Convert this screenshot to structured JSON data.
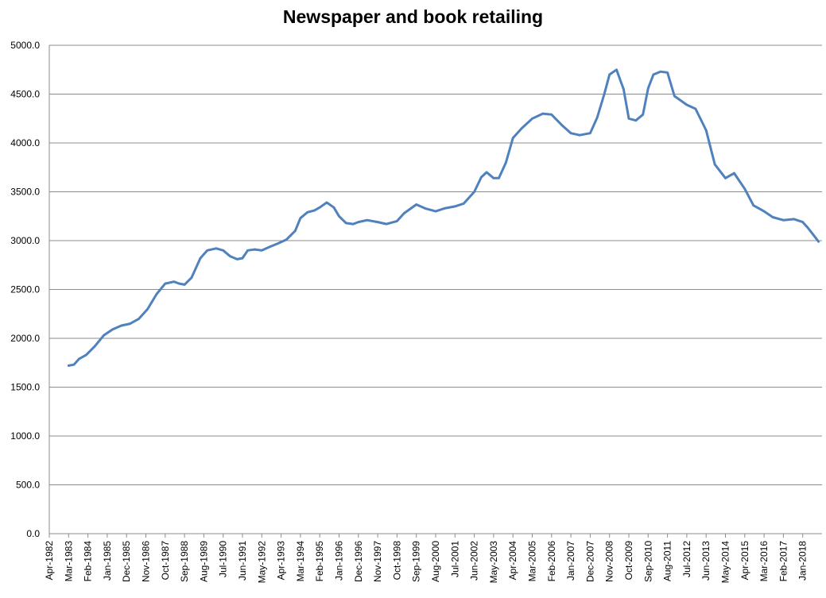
{
  "chart_data": {
    "type": "line",
    "title": "Newspaper and book retailing",
    "xlabel": "",
    "ylabel": "",
    "ylim": [
      0,
      5000
    ],
    "y_ticks": [
      "0.0",
      "500.0",
      "1000.0",
      "1500.0",
      "2000.0",
      "2500.0",
      "3000.0",
      "3500.0",
      "4000.0",
      "4500.0",
      "5000.0"
    ],
    "grid": true,
    "legend": "none",
    "x_ticks": [
      "Apr-1982",
      "Mar-1983",
      "Feb-1984",
      "Jan-1985",
      "Dec-1985",
      "Nov-1986",
      "Oct-1987",
      "Sep-1988",
      "Aug-1989",
      "Jul-1990",
      "Jun-1991",
      "May-1992",
      "Apr-1993",
      "Mar-1994",
      "Feb-1995",
      "Jan-1996",
      "Dec-1996",
      "Nov-1997",
      "Oct-1998",
      "Sep-1999",
      "Aug-2000",
      "Jul-2001",
      "Jun-2002",
      "May-2003",
      "Apr-2004",
      "Mar-2005",
      "Feb-2006",
      "Jan-2007",
      "Dec-2007",
      "Nov-2008",
      "Oct-2009",
      "Sep-2010",
      "Aug-2011",
      "Jul-2012",
      "Jun-2013",
      "May-2014",
      "Apr-2015",
      "Mar-2016",
      "Feb-2017",
      "Jan-2018"
    ],
    "series": [
      {
        "color": "#4F81BD",
        "x": [
          "Mar-1983",
          "Jun-1983",
          "Sep-1983",
          "Jan-1984",
          "Jun-1984",
          "Nov-1984",
          "Apr-1985",
          "Sep-1985",
          "Feb-1986",
          "Jul-1986",
          "Dec-1986",
          "May-1987",
          "Oct-1987",
          "Mar-1988",
          "Jun-1988",
          "Sep-1988",
          "Jan-1989",
          "Jun-1989",
          "Oct-1989",
          "Mar-1990",
          "Jul-1990",
          "Nov-1990",
          "Mar-1991",
          "Jun-1991",
          "Sep-1991",
          "Jan-1992",
          "May-1992",
          "Oct-1992",
          "Feb-1993",
          "Jul-1993",
          "Dec-1993",
          "Mar-1994",
          "Jul-1994",
          "Nov-1994",
          "Feb-1995",
          "Jun-1995",
          "Oct-1995",
          "Jan-1996",
          "May-1996",
          "Sep-1996",
          "Dec-1996",
          "May-1997",
          "Nov-1997",
          "Apr-1998",
          "Oct-1998",
          "Feb-1999",
          "Sep-1999",
          "Feb-2000",
          "Aug-2000",
          "Jan-2001",
          "Jul-2001",
          "Dec-2001",
          "Jun-2002",
          "Oct-2002",
          "Jan-2003",
          "May-2003",
          "Aug-2003",
          "Dec-2003",
          "Apr-2004",
          "Sep-2004",
          "Mar-2005",
          "Sep-2005",
          "Feb-2006",
          "Aug-2006",
          "Jan-2007",
          "Jun-2007",
          "Dec-2007",
          "Apr-2008",
          "Aug-2008",
          "Nov-2008",
          "Mar-2009",
          "Jul-2009",
          "Oct-2009",
          "Feb-2010",
          "Jun-2010",
          "Sep-2010",
          "Dec-2010",
          "Apr-2011",
          "Aug-2011",
          "Dec-2011",
          "Jul-2012",
          "Dec-2012",
          "Jun-2013",
          "Nov-2013",
          "May-2014",
          "Oct-2014",
          "Apr-2015",
          "Sep-2015",
          "Mar-2016",
          "Aug-2016",
          "Feb-2017",
          "Aug-2017",
          "Jan-2018",
          "Apr-2018",
          "Jul-2018",
          "Oct-2018"
        ],
        "values": [
          1720,
          1730,
          1790,
          1830,
          1920,
          2030,
          2090,
          2130,
          2150,
          2200,
          2300,
          2450,
          2560,
          2580,
          2560,
          2550,
          2620,
          2820,
          2900,
          2920,
          2900,
          2840,
          2810,
          2820,
          2900,
          2910,
          2900,
          2940,
          2970,
          3010,
          3100,
          3230,
          3290,
          3310,
          3340,
          3390,
          3340,
          3250,
          3180,
          3170,
          3190,
          3210,
          3190,
          3170,
          3200,
          3280,
          3370,
          3330,
          3300,
          3330,
          3350,
          3380,
          3500,
          3650,
          3700,
          3640,
          3640,
          3800,
          4050,
          4150,
          4250,
          4300,
          4290,
          4180,
          4100,
          4080,
          4100,
          4260,
          4500,
          4700,
          4750,
          4550,
          4250,
          4230,
          4290,
          4560,
          4700,
          4730,
          4720,
          4480,
          4390,
          4350,
          4130,
          3780,
          3640,
          3690,
          3530,
          3360,
          3300,
          3240,
          3210,
          3220,
          3190,
          3130,
          3060,
          2990
        ]
      }
    ]
  }
}
